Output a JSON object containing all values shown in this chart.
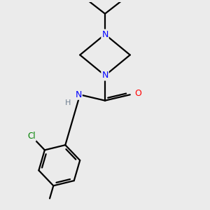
{
  "background_color": "#ebebeb",
  "bond_color": "#000000",
  "N_color": "#0000ff",
  "O_color": "#ff0000",
  "Cl_color": "#008000",
  "H_color": "#708090",
  "line_width": 1.6,
  "figsize": [
    3.0,
    3.0
  ],
  "dpi": 100,
  "xlim": [
    -2.5,
    2.5
  ],
  "ylim": [
    -3.8,
    3.2
  ]
}
